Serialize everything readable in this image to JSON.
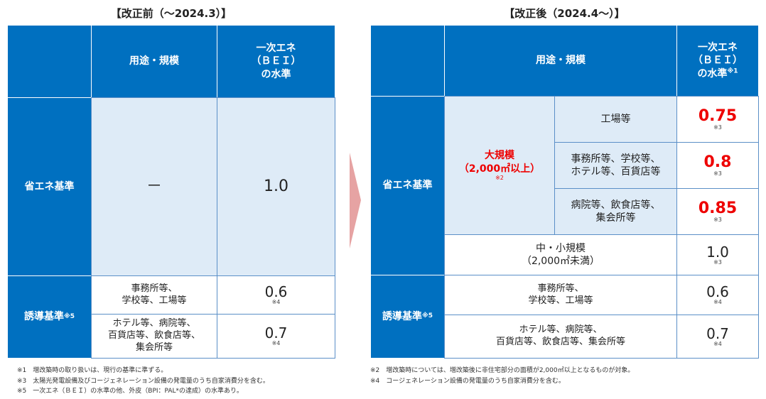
{
  "left": {
    "title": "【改正前（～2024.3）】",
    "header": {
      "use": "用途・規模",
      "bei": "一次エネ\n（ＢＥＩ）\nの水準"
    },
    "energy": {
      "label": "省エネ基準",
      "use": "－",
      "bei": "1.0"
    },
    "induced": {
      "label": "誘導基準",
      "label_note": "※5",
      "rows": [
        {
          "use": "事務所等、\n学校等、工場等",
          "bei": "0.6",
          "note": "※4"
        },
        {
          "use": "ホテル等、病院等、\n百貨店等、飲食店等、\n集会所等",
          "bei": "0.7",
          "note": "※4"
        }
      ]
    },
    "footnotes": [
      "※1　増改築時の取り扱いは、現行の基準に準ずる。",
      "※3　太陽光発電設備及びコージェネレーション設備の発電量のうち自家消費分を含む。",
      "※5　一次エネ（ＢＥＩ）の水準の他、外皮（BPI：PAL*の達成）の水準あり。"
    ]
  },
  "right": {
    "title": "【改正後（2024.4～）】",
    "header": {
      "use": "用途・規模",
      "bei": "一次エネ\n（ＢＥＩ）\nの水準",
      "bei_note": "※1"
    },
    "energy": {
      "label": "省エネ基準",
      "large": {
        "label": "大規模\n（2,000㎡以上）",
        "note": "※2",
        "rows": [
          {
            "use": "工場等",
            "bei": "0.75",
            "note": "※3"
          },
          {
            "use": "事務所等、学校等、\nホテル等、百貨店等",
            "bei": "0.8",
            "note": "※3"
          },
          {
            "use": "病院等、飲食店等、\n集会所等",
            "bei": "0.85",
            "note": "※3"
          }
        ]
      },
      "small": {
        "use": "中・小規模\n（2,000㎡未満）",
        "bei": "1.0",
        "note": "※3"
      }
    },
    "induced": {
      "label": "誘導基準",
      "label_note": "※5",
      "rows": [
        {
          "use": "事務所等、\n学校等、工場等",
          "bei": "0.6",
          "note": "※4"
        },
        {
          "use": "ホテル等、病院等、\n百貨店等、飲食店等、集会所等",
          "bei": "0.7",
          "note": "※4"
        }
      ]
    },
    "footnotes": [
      "※2　増改築時については、増改築後に非住宅部分の面積が2,000㎡以上となるものが対象。",
      "※4　コージェネレーション設備の発電量のうち自家消費分を含む。"
    ]
  }
}
